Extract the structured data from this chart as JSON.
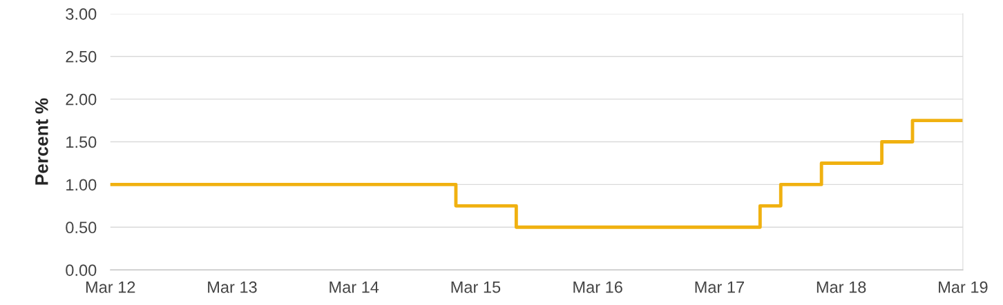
{
  "chart_data": {
    "type": "step",
    "ylabel": "Percent %",
    "x": [
      "2012-03",
      "2015-01",
      "2015-07",
      "2017-07",
      "2017-09",
      "2018-01",
      "2018-07",
      "2018-10",
      "2019-03"
    ],
    "series": [
      {
        "color": "#f0b110",
        "values": [
          1.0,
          0.75,
          0.5,
          0.75,
          1.0,
          1.25,
          1.5,
          1.75,
          1.75
        ]
      }
    ],
    "xlim": [
      "2012-03",
      "2019-03"
    ],
    "xticks": [
      {
        "value": "2012-03",
        "label": "Mar 12"
      },
      {
        "value": "2013-03",
        "label": "Mar 13"
      },
      {
        "value": "2014-03",
        "label": "Mar 14"
      },
      {
        "value": "2015-03",
        "label": "Mar 15"
      },
      {
        "value": "2016-03",
        "label": "Mar 16"
      },
      {
        "value": "2017-03",
        "label": "Mar 17"
      },
      {
        "value": "2018-03",
        "label": "Mar 18"
      },
      {
        "value": "2019-03",
        "label": "Mar 19"
      }
    ],
    "ylim": [
      0,
      3
    ],
    "yticks": [
      {
        "value": 0,
        "label": "0.00"
      },
      {
        "value": 0.5,
        "label": "0.50"
      },
      {
        "value": 1,
        "label": "1.00"
      },
      {
        "value": 1.5,
        "label": "1.50"
      },
      {
        "value": 2,
        "label": "2.00"
      },
      {
        "value": 2.5,
        "label": "2.50"
      },
      {
        "value": 3,
        "label": "3.00"
      }
    ],
    "grid": "y",
    "line_style": "solid"
  }
}
